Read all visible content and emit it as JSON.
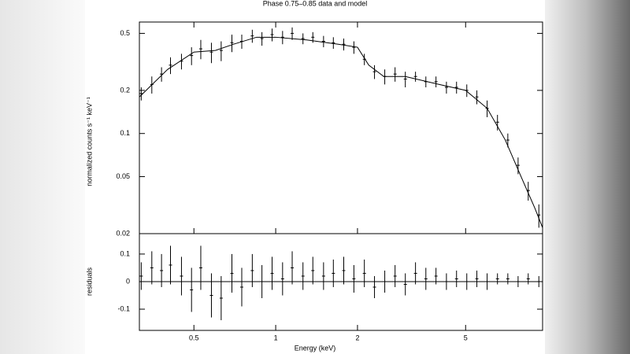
{
  "chart_data": [
    {
      "type": "errorbar",
      "title": "Phase 0.75–0.85 data and model",
      "ylabel": "normalized counts s⁻¹ keV⁻¹",
      "log_x": true,
      "log_y": true,
      "color": "#000000",
      "xlim": [
        0.315,
        9.6
      ],
      "ylim": [
        0.02,
        0.6
      ],
      "yticks": [
        0.5,
        0.2,
        0.1,
        0.05,
        0.02
      ],
      "x": [
        0.32,
        0.35,
        0.38,
        0.41,
        0.45,
        0.49,
        0.53,
        0.58,
        0.63,
        0.69,
        0.75,
        0.82,
        0.89,
        0.97,
        1.06,
        1.15,
        1.26,
        1.37,
        1.5,
        1.63,
        1.78,
        1.94,
        2.12,
        2.31,
        2.52,
        2.75,
        3.0,
        3.27,
        3.57,
        3.89,
        4.25,
        4.63,
        5.05,
        5.5,
        6.0,
        6.55,
        7.15,
        7.8,
        8.5,
        9.3
      ],
      "values": [
        0.19,
        0.22,
        0.26,
        0.3,
        0.32,
        0.35,
        0.39,
        0.37,
        0.38,
        0.43,
        0.44,
        0.48,
        0.46,
        0.49,
        0.47,
        0.5,
        0.46,
        0.47,
        0.44,
        0.43,
        0.42,
        0.4,
        0.33,
        0.27,
        0.25,
        0.26,
        0.24,
        0.25,
        0.23,
        0.23,
        0.21,
        0.21,
        0.2,
        0.18,
        0.15,
        0.12,
        0.09,
        0.06,
        0.04,
        0.027
      ],
      "errors": [
        0.02,
        0.03,
        0.03,
        0.04,
        0.04,
        0.05,
        0.06,
        0.06,
        0.06,
        0.06,
        0.05,
        0.05,
        0.05,
        0.05,
        0.05,
        0.05,
        0.04,
        0.04,
        0.04,
        0.04,
        0.04,
        0.04,
        0.03,
        0.03,
        0.03,
        0.03,
        0.03,
        0.02,
        0.02,
        0.02,
        0.02,
        0.02,
        0.02,
        0.02,
        0.02,
        0.015,
        0.01,
        0.008,
        0.006,
        0.005
      ],
      "model": {
        "x": [
          0.315,
          0.4,
          0.5,
          0.6,
          0.7,
          0.85,
          1,
          1.3,
          1.7,
          2,
          2.2,
          2.5,
          3,
          4,
          5,
          6,
          7,
          8,
          9,
          9.6
        ],
        "values": [
          0.18,
          0.28,
          0.37,
          0.38,
          0.42,
          0.47,
          0.47,
          0.45,
          0.42,
          0.4,
          0.3,
          0.25,
          0.25,
          0.22,
          0.2,
          0.15,
          0.09,
          0.05,
          0.03,
          0.022
        ]
      }
    },
    {
      "type": "residuals",
      "xlabel": "Energy (keV)",
      "ylabel": "residuals",
      "log_x": true,
      "color": "#000000",
      "xlim": [
        0.315,
        9.6
      ],
      "xticks": [
        0.5,
        1,
        2,
        5
      ],
      "ylim": [
        -0.177,
        0.174
      ],
      "yticks": [
        0.1,
        0,
        -0.1
      ],
      "values": [
        0.02,
        0.05,
        0.04,
        0.06,
        0.02,
        -0.03,
        0.05,
        -0.05,
        -0.06,
        0.03,
        -0.02,
        0.04,
        0.0,
        0.03,
        0.01,
        0.05,
        0.02,
        0.04,
        0.02,
        0.03,
        0.04,
        0.01,
        0.03,
        -0.02,
        0.0,
        0.02,
        -0.01,
        0.03,
        0.01,
        0.02,
        0.0,
        0.01,
        0.0,
        0.01,
        0.0,
        0.01,
        0.01,
        0.0,
        0.01,
        0.0
      ],
      "errors": [
        0.05,
        0.06,
        0.06,
        0.07,
        0.07,
        0.08,
        0.08,
        0.08,
        0.08,
        0.07,
        0.07,
        0.06,
        0.06,
        0.06,
        0.06,
        0.06,
        0.05,
        0.05,
        0.05,
        0.05,
        0.05,
        0.05,
        0.05,
        0.04,
        0.04,
        0.04,
        0.04,
        0.04,
        0.04,
        0.03,
        0.03,
        0.03,
        0.03,
        0.03,
        0.03,
        0.02,
        0.02,
        0.02,
        0.02,
        0.02
      ]
    }
  ]
}
